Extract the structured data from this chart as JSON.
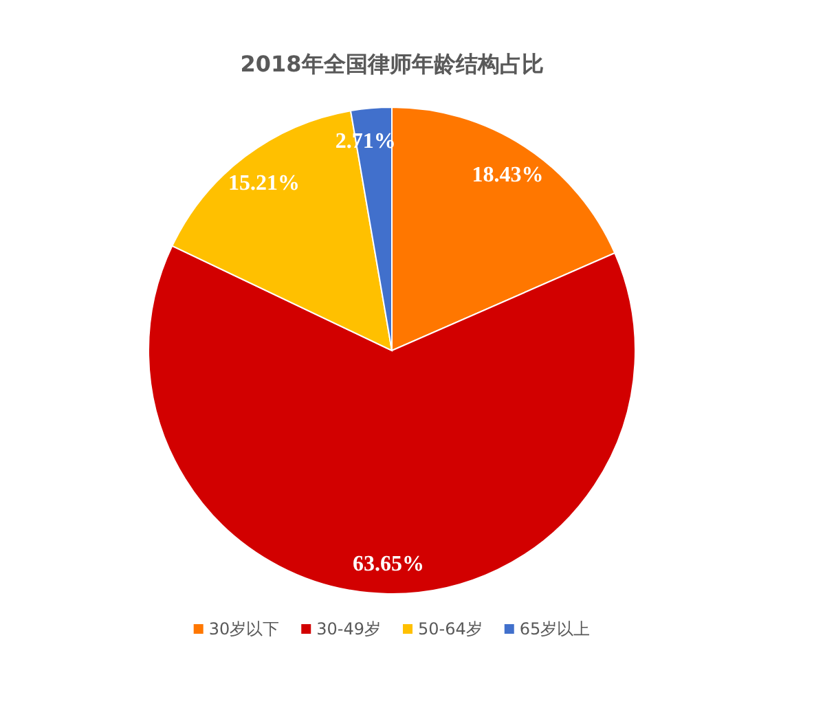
{
  "chart_data": {
    "type": "pie",
    "title": "2018年全国律师年龄结构占比",
    "categories": [
      "30岁以下",
      "30-49岁",
      "50-64岁",
      "65岁以上"
    ],
    "values": [
      18.43,
      63.65,
      15.21,
      2.71
    ],
    "value_labels": [
      "18.43%",
      "63.65%",
      "15.21%",
      "2.71%"
    ],
    "colors": [
      "#ff7700",
      "#d20000",
      "#ffc000",
      "#4170cc"
    ],
    "legend": "bottom"
  }
}
